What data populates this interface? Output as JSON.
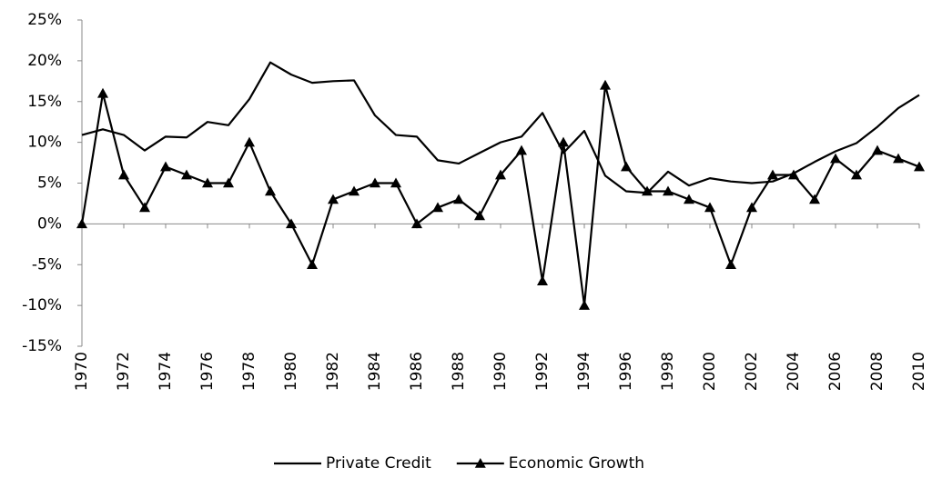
{
  "chart_data": {
    "type": "line",
    "x": [
      1970,
      1971,
      1972,
      1973,
      1974,
      1975,
      1976,
      1977,
      1978,
      1979,
      1980,
      1981,
      1982,
      1983,
      1984,
      1985,
      1986,
      1987,
      1988,
      1989,
      1990,
      1991,
      1992,
      1993,
      1994,
      1995,
      1996,
      1997,
      1998,
      1999,
      2000,
      2001,
      2002,
      2003,
      2004,
      2005,
      2006,
      2007,
      2008,
      2009,
      2010
    ],
    "xlim": [
      1970,
      2010
    ],
    "xticks": [
      1970,
      1972,
      1974,
      1976,
      1978,
      1980,
      1982,
      1984,
      1986,
      1988,
      1990,
      1992,
      1994,
      1996,
      1998,
      2000,
      2002,
      2004,
      2006,
      2008,
      2010
    ],
    "ylim": [
      -15,
      25
    ],
    "yticks": [
      {
        "value": -15,
        "label": "-15%"
      },
      {
        "value": -10,
        "label": "-10%"
      },
      {
        "value": -5,
        "label": "-5%"
      },
      {
        "value": 0,
        "label": "0%"
      },
      {
        "value": 5,
        "label": "5%"
      },
      {
        "value": 10,
        "label": "10%"
      },
      {
        "value": 15,
        "label": "15%"
      },
      {
        "value": 20,
        "label": "20%"
      },
      {
        "value": 25,
        "label": "25%"
      }
    ],
    "grid": false,
    "legend": "bottom",
    "series": [
      {
        "name": "Private Credit",
        "color": "#000000",
        "marker": "none",
        "values": [
          10.9,
          11.6,
          10.9,
          9.0,
          10.7,
          10.6,
          12.5,
          12.1,
          15.3,
          19.8,
          18.3,
          17.3,
          17.5,
          17.6,
          13.3,
          10.9,
          10.7,
          7.8,
          7.4,
          8.7,
          10.0,
          10.7,
          13.6,
          8.7,
          11.4,
          5.9,
          4.0,
          3.8,
          6.4,
          4.7,
          5.6,
          5.2,
          5.0,
          5.2,
          6.2,
          7.6,
          8.9,
          9.9,
          11.9,
          14.2,
          15.8
        ]
      },
      {
        "name": "Economic Growth",
        "color": "#000000",
        "marker": "triangle",
        "values": [
          0,
          16,
          6,
          2,
          7,
          6,
          5,
          5,
          10,
          4,
          0,
          -5,
          3,
          4,
          5,
          5,
          0,
          2,
          3,
          1,
          6,
          9,
          -7,
          10,
          -10,
          17,
          7,
          4,
          4,
          3,
          2,
          -5,
          2,
          6,
          6,
          3,
          8,
          6,
          9,
          8,
          7
        ]
      }
    ]
  }
}
